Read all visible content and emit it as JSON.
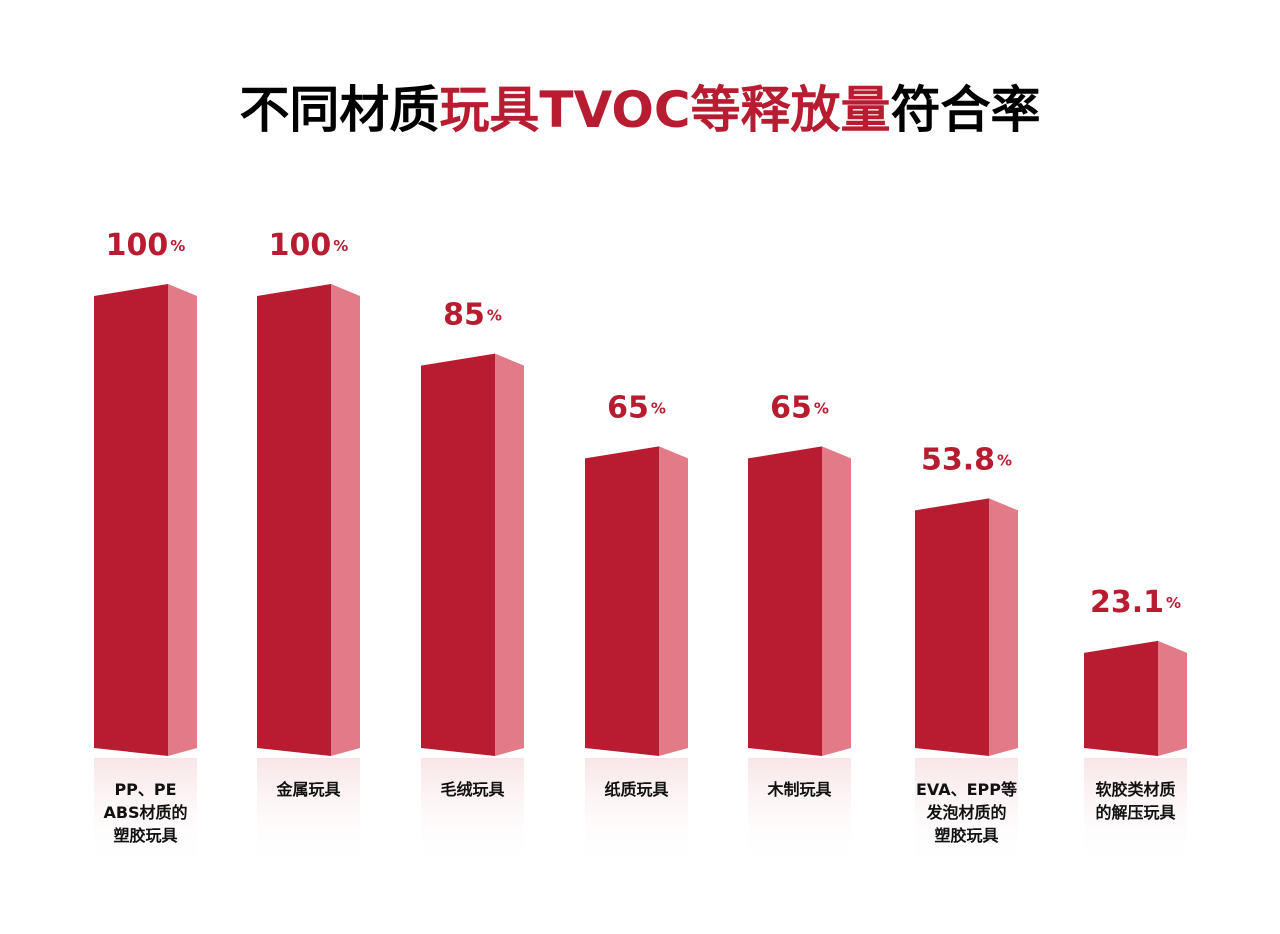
{
  "chart_data": {
    "type": "bar3d",
    "title_parts": [
      "不同材质",
      "玩具TVOC等释放量",
      "符合率"
    ],
    "title_colors": [
      "#000000",
      "#b71c30",
      "#000000"
    ],
    "categories": [
      "PP、PE\nABS材质的\n塑胶玩具",
      "金属玩具",
      "毛绒玩具",
      "纸质玩具",
      "木制玩具",
      "EVA、EPP等\n发泡材质的\n塑胶玩具",
      "软胶类材质\n的解压玩具"
    ],
    "values": [
      100,
      100,
      85,
      65,
      65,
      53.8,
      23.1
    ],
    "value_labels": [
      "100%",
      "100%",
      "85%",
      "65%",
      "65%",
      "53.8%",
      "23.1%"
    ],
    "color": "#b71c30",
    "side_color": "#e27a87",
    "label_color": "#b71c30"
  }
}
